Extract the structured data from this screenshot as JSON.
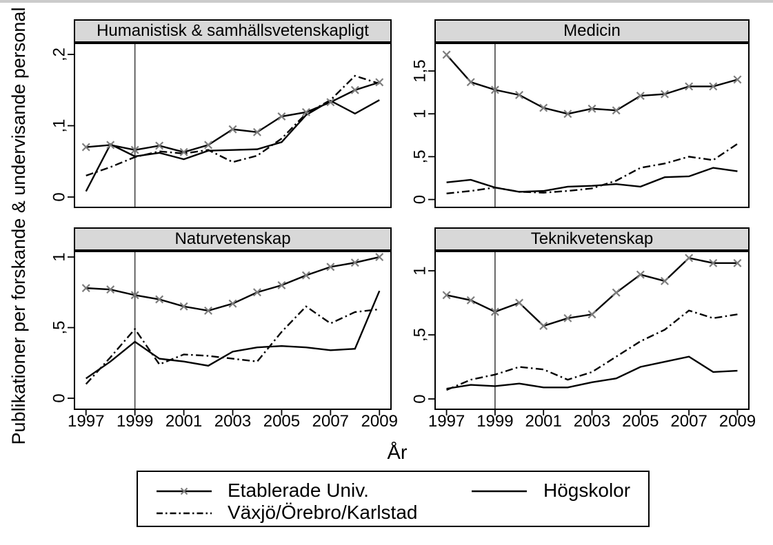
{
  "figure": {
    "y_axis_title": "Publikationer per forskande & undervisande personal",
    "x_axis_title": "År"
  },
  "colors": {
    "line": "#000000",
    "marker": "#7d7d7d",
    "refline": "#444444",
    "panel_header_bg": "#d8d8d8",
    "top_strip": "#cbcbcb"
  },
  "legend": {
    "items": [
      {
        "label": "Etablerade Univ.",
        "style": "solid-x"
      },
      {
        "label": "Högskolor",
        "style": "solid"
      },
      {
        "label": "Växjö/Örebro/Karlstad",
        "style": "dashdot"
      }
    ]
  },
  "chart_data": [
    {
      "type": "line",
      "title": "Humanistisk & samhällsvetenskapligt",
      "xlabel": "År",
      "x": [
        1997,
        1998,
        1999,
        2000,
        2001,
        2002,
        2003,
        2004,
        2005,
        2006,
        2007,
        2008,
        2009
      ],
      "x_ticks": [
        1997,
        1999,
        2001,
        2003,
        2005,
        2007,
        2009
      ],
      "y_ticks": {
        "values": [
          0,
          0.1,
          0.2
        ],
        "labels": [
          "0",
          ",1",
          ",2"
        ]
      },
      "xlim": [
        1996.5,
        2009.5
      ],
      "ylim": [
        -0.0155,
        0.2164
      ],
      "ref_line_x": 1999,
      "series": [
        {
          "name": "Etablerade Univ.",
          "style": "solid-x",
          "values": [
            0.07,
            0.073,
            0.066,
            0.072,
            0.063,
            0.073,
            0.095,
            0.091,
            0.113,
            0.119,
            0.133,
            0.15,
            0.161
          ]
        },
        {
          "name": "Högskolor",
          "style": "solid",
          "values": [
            0.008,
            0.074,
            0.057,
            0.062,
            0.053,
            0.065,
            0.066,
            0.067,
            0.077,
            0.115,
            0.135,
            0.117,
            0.136
          ]
        },
        {
          "name": "Växjö/Örebro/Karlstad",
          "style": "dashdot",
          "values": [
            0.03,
            0.042,
            0.056,
            0.064,
            0.061,
            0.066,
            0.049,
            0.058,
            0.082,
            0.117,
            0.136,
            0.17,
            0.159
          ]
        }
      ]
    },
    {
      "type": "line",
      "title": "Medicin",
      "xlabel": "År",
      "x": [
        1997,
        1998,
        1999,
        2000,
        2001,
        2002,
        2003,
        2004,
        2005,
        2006,
        2007,
        2008,
        2009
      ],
      "x_ticks": [
        1997,
        1999,
        2001,
        2003,
        2005,
        2007,
        2009
      ],
      "y_ticks": {
        "values": [
          0,
          0.5,
          1,
          1.5
        ],
        "labels": [
          "0",
          ",5",
          "1",
          "1,5"
        ]
      },
      "xlim": [
        1996.5,
        2009.5
      ],
      "ylim": [
        -0.1,
        1.83
      ],
      "ref_line_x": 1999,
      "series": [
        {
          "name": "Etablerade Univ.",
          "style": "solid-x",
          "values": [
            1.69,
            1.37,
            1.28,
            1.22,
            1.07,
            1.0,
            1.06,
            1.04,
            1.21,
            1.23,
            1.32,
            1.32,
            1.4
          ]
        },
        {
          "name": "Högskolor",
          "style": "solid",
          "values": [
            0.2,
            0.23,
            0.14,
            0.09,
            0.1,
            0.15,
            0.16,
            0.18,
            0.15,
            0.26,
            0.27,
            0.37,
            0.33
          ]
        },
        {
          "name": "Växjö/Örebro/Karlstad",
          "style": "dashdot",
          "values": [
            0.07,
            0.1,
            0.14,
            0.09,
            0.08,
            0.1,
            0.13,
            0.22,
            0.37,
            0.42,
            0.5,
            0.46,
            0.65
          ]
        }
      ]
    },
    {
      "type": "line",
      "title": "Naturvetenskap",
      "xlabel": "År",
      "x": [
        1997,
        1998,
        1999,
        2000,
        2001,
        2002,
        2003,
        2004,
        2005,
        2006,
        2007,
        2008,
        2009
      ],
      "x_ticks": [
        1997,
        1999,
        2001,
        2003,
        2005,
        2007,
        2009
      ],
      "y_ticks": {
        "values": [
          0,
          0.5,
          1
        ],
        "labels": [
          "0",
          ",5",
          "1"
        ]
      },
      "xlim": [
        1996.5,
        2009.5
      ],
      "ylim": [
        -0.083,
        1.044
      ],
      "ref_line_x": 1999,
      "series": [
        {
          "name": "Etablerade Univ.",
          "style": "solid-x",
          "values": [
            0.78,
            0.77,
            0.73,
            0.7,
            0.65,
            0.62,
            0.67,
            0.75,
            0.8,
            0.87,
            0.93,
            0.96,
            1.0
          ]
        },
        {
          "name": "Högskolor",
          "style": "solid",
          "values": [
            0.14,
            0.26,
            0.4,
            0.28,
            0.26,
            0.23,
            0.33,
            0.36,
            0.37,
            0.36,
            0.34,
            0.35,
            0.76
          ]
        },
        {
          "name": "Växjö/Örebro/Karlstad",
          "style": "dashdot",
          "values": [
            0.1,
            0.29,
            0.49,
            0.24,
            0.31,
            0.3,
            0.28,
            0.26,
            0.47,
            0.65,
            0.53,
            0.61,
            0.63
          ]
        }
      ]
    },
    {
      "type": "line",
      "title": "Teknikvetenskap",
      "xlabel": "År",
      "x": [
        1997,
        1998,
        1999,
        2000,
        2001,
        2002,
        2003,
        2004,
        2005,
        2006,
        2007,
        2008,
        2009
      ],
      "x_ticks": [
        1997,
        1999,
        2001,
        2003,
        2005,
        2007,
        2009
      ],
      "y_ticks": {
        "values": [
          0,
          0.5,
          1
        ],
        "labels": [
          "0",
          ",5",
          "1"
        ]
      },
      "xlim": [
        1996.5,
        2009.5
      ],
      "ylim": [
        -0.086,
        1.156
      ],
      "ref_line_x": 1999,
      "series": [
        {
          "name": "Etablerade Univ.",
          "style": "solid-x",
          "values": [
            0.81,
            0.77,
            0.68,
            0.75,
            0.57,
            0.63,
            0.66,
            0.83,
            0.97,
            0.92,
            1.1,
            1.06,
            1.06
          ]
        },
        {
          "name": "Högskolor",
          "style": "solid",
          "values": [
            0.08,
            0.11,
            0.1,
            0.12,
            0.09,
            0.09,
            0.13,
            0.16,
            0.25,
            0.29,
            0.33,
            0.21,
            0.22
          ]
        },
        {
          "name": "Växjö/Örebro/Karlstad",
          "style": "dashdot",
          "values": [
            0.07,
            0.15,
            0.19,
            0.25,
            0.23,
            0.15,
            0.21,
            0.33,
            0.45,
            0.54,
            0.69,
            0.63,
            0.66
          ]
        }
      ]
    }
  ]
}
